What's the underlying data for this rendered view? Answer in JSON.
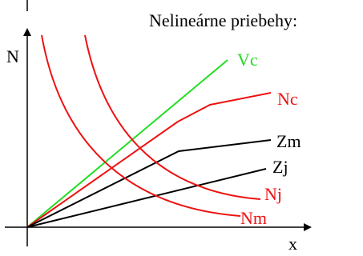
{
  "title": "Nelineárne priebehy:",
  "axes": {
    "y_label": "N",
    "x_label": "x"
  },
  "curves": [
    {
      "id": "vc",
      "label": "Vc",
      "color": "#22dd22"
    },
    {
      "id": "nc",
      "label": "Nc",
      "color": "#ee1111"
    },
    {
      "id": "zm",
      "label": "Zm",
      "color": "#000000"
    },
    {
      "id": "zj",
      "label": "Zj",
      "color": "#000000"
    },
    {
      "id": "nj",
      "label": "Nj",
      "color": "#ee1111"
    },
    {
      "id": "nm",
      "label": "Nm",
      "color": "#ee1111"
    }
  ],
  "colors": {
    "axis": "#000000",
    "background": "#ffffff"
  }
}
